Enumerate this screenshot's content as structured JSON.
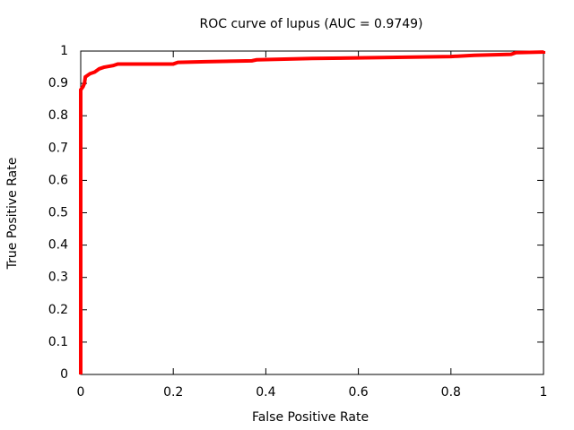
{
  "chart_data": {
    "type": "line",
    "title": "ROC curve of lupus (AUC = 0.9749)",
    "x_label": "False Positive Rate",
    "y_label": "True Positive Rate",
    "x": [
      0,
      0,
      0.005,
      0.008,
      0.01,
      0.02,
      0.03,
      0.04,
      0.05,
      0.07,
      0.08,
      0.2,
      0.21,
      0.27,
      0.37,
      0.38,
      0.5,
      0.65,
      0.8,
      0.85,
      0.93,
      0.94,
      1,
      1
    ],
    "values": [
      0,
      0.88,
      0.89,
      0.9,
      0.92,
      0.93,
      0.935,
      0.945,
      0.95,
      0.955,
      0.96,
      0.96,
      0.965,
      0.967,
      0.97,
      0.973,
      0.977,
      0.98,
      0.983,
      0.987,
      0.99,
      0.995,
      0.997,
      1
    ],
    "color": "#ff0000",
    "xlim": [
      0,
      1
    ],
    "xticks": [
      0,
      0.2,
      0.4,
      0.6,
      0.8,
      1
    ],
    "ylim": [
      0,
      1
    ],
    "yticks": [
      0,
      0.1,
      0.2,
      0.3,
      0.4,
      0.5,
      0.6,
      0.7,
      0.8,
      0.9,
      1
    ],
    "grid": false
  }
}
